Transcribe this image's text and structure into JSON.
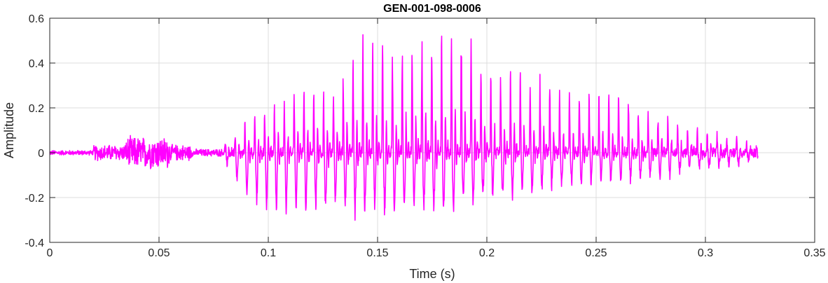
{
  "chart_data": {
    "type": "line",
    "title": "GEN-001-098-0006",
    "xlabel": "Time (s)",
    "ylabel": "Amplitude",
    "xlim": [
      0,
      0.35
    ],
    "ylim": [
      -0.4,
      0.6
    ],
    "xticks": [
      0,
      0.05,
      0.1,
      0.15,
      0.2,
      0.25,
      0.3,
      0.35
    ],
    "xtick_labels": [
      "0",
      "0.05",
      "0.1",
      "0.15",
      "0.2",
      "0.25",
      "0.3",
      "0.35"
    ],
    "yticks": [
      -0.4,
      -0.2,
      0,
      0.2,
      0.4,
      0.6
    ],
    "ytick_labels": [
      "-0.4",
      "-0.2",
      "0",
      "0.2",
      "0.4",
      "0.6"
    ],
    "grid": true,
    "series_color": "#ff00ff",
    "signal": {
      "start": 0,
      "end": 0.324,
      "noise_segments": [
        {
          "t_start": 0.0,
          "t_end": 0.02,
          "amp_max": 0.012
        },
        {
          "t_start": 0.02,
          "t_end": 0.035,
          "amp_max": 0.04
        },
        {
          "t_start": 0.035,
          "t_end": 0.055,
          "amp_max": 0.08
        },
        {
          "t_start": 0.055,
          "t_end": 0.065,
          "amp_max": 0.04
        },
        {
          "t_start": 0.065,
          "t_end": 0.08,
          "amp_max": 0.018
        }
      ],
      "voiced_start": 0.08,
      "pitch_period": 0.0045,
      "envelope": [
        {
          "t": 0.08,
          "pos": 0.03,
          "neg": -0.03
        },
        {
          "t": 0.09,
          "pos": 0.14,
          "neg": -0.18
        },
        {
          "t": 0.1,
          "pos": 0.2,
          "neg": -0.25
        },
        {
          "t": 0.115,
          "pos": 0.3,
          "neg": -0.26
        },
        {
          "t": 0.13,
          "pos": 0.3,
          "neg": -0.25
        },
        {
          "t": 0.145,
          "pos": 0.5,
          "neg": -0.28
        },
        {
          "t": 0.16,
          "pos": 0.45,
          "neg": -0.25
        },
        {
          "t": 0.17,
          "pos": 0.52,
          "neg": -0.26
        },
        {
          "t": 0.187,
          "pos": 0.55,
          "neg": -0.27
        },
        {
          "t": 0.2,
          "pos": 0.4,
          "neg": -0.2
        },
        {
          "t": 0.22,
          "pos": 0.33,
          "neg": -0.17
        },
        {
          "t": 0.24,
          "pos": 0.28,
          "neg": -0.14
        },
        {
          "t": 0.26,
          "pos": 0.25,
          "neg": -0.13
        },
        {
          "t": 0.28,
          "pos": 0.16,
          "neg": -0.1
        },
        {
          "t": 0.3,
          "pos": 0.09,
          "neg": -0.06
        },
        {
          "t": 0.315,
          "pos": 0.06,
          "neg": -0.05
        },
        {
          "t": 0.324,
          "pos": 0.03,
          "neg": -0.03
        }
      ]
    }
  }
}
